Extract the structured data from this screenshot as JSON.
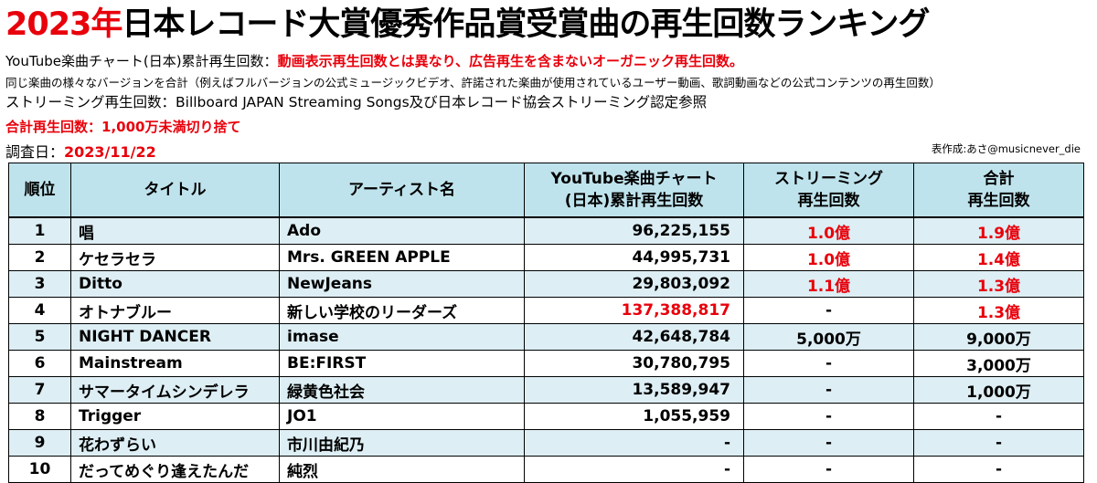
{
  "title": {
    "year": "2023年",
    "rest": "日本レコード大賞優秀作品賞受賞曲の再生回数ランキング"
  },
  "notes": {
    "youtube_label": "YouTube楽曲チャート(日本)累計再生回数：",
    "youtube_desc": "動画表示再生回数とは異なり、広告再生を含まないオーガニック再生回数。",
    "versions": "同じ楽曲の様々なバージョンを合計（例えばフルバージョンの公式ミュージックビデオ、許諾された楽曲が使用されているユーザー動画、歌詞動画などの公式コンテンツの再生回数）",
    "streaming": "ストリーミング再生回数：Billboard JAPAN Streaming Songs及び日本レコード協会ストリーミング認定参照",
    "total": "合計再生回数：1,000万未満切り捨て",
    "survey_label": "調査日：",
    "survey_date": "2023/11/22",
    "credit": "表作成:あさ@musicnever_die"
  },
  "chart_data": {
    "type": "table",
    "columns": {
      "rank": "順位",
      "title": "タイトル",
      "artist": "アーティスト名",
      "youtube_1": "YouTube楽曲チャート",
      "youtube_2": "(日本)累計再生回数",
      "streaming_1": "ストリーミング",
      "streaming_2": "再生回数",
      "total_1": "合計",
      "total_2": "再生回数"
    },
    "rows": [
      {
        "rank": "1",
        "title": "唱",
        "artist": "Ado",
        "youtube": "96,225,155",
        "streaming": "1.0億",
        "total": "1.9億"
      },
      {
        "rank": "2",
        "title": "ケセラセラ",
        "artist": "Mrs. GREEN APPLE",
        "youtube": "44,995,731",
        "streaming": "1.0億",
        "total": "1.4億"
      },
      {
        "rank": "3",
        "title": "Ditto",
        "artist": "NewJeans",
        "youtube": "29,803,092",
        "streaming": "1.1億",
        "total": "1.3億"
      },
      {
        "rank": "4",
        "title": "オトナブルー",
        "artist": "新しい学校のリーダーズ",
        "youtube": "137,388,817",
        "streaming": "-",
        "total": "1.3億"
      },
      {
        "rank": "5",
        "title": "NIGHT DANCER",
        "artist": "imase",
        "youtube": "42,648,784",
        "streaming": "5,000万",
        "total": "9,000万"
      },
      {
        "rank": "6",
        "title": "Mainstream",
        "artist": "BE:FIRST",
        "youtube": "30,780,795",
        "streaming": "-",
        "total": "3,000万"
      },
      {
        "rank": "7",
        "title": "サマータイムシンデレラ",
        "artist": "緑黄色社会",
        "youtube": "13,589,947",
        "streaming": "-",
        "total": "1,000万"
      },
      {
        "rank": "8",
        "title": "Trigger",
        "artist": "JO1",
        "youtube": "1,055,959",
        "streaming": "-",
        "total": "-"
      },
      {
        "rank": "9",
        "title": "花わずらい",
        "artist": "市川由紀乃",
        "youtube": "-",
        "streaming": "-",
        "total": "-"
      },
      {
        "rank": "10",
        "title": "だってめぐり逢えたんだ",
        "artist": "純烈",
        "youtube": "-",
        "streaming": "-",
        "total": "-"
      }
    ],
    "highlight_color": "#e8000b",
    "header_color": "#bfe3ec",
    "stripe_color": "#ddeef4"
  }
}
